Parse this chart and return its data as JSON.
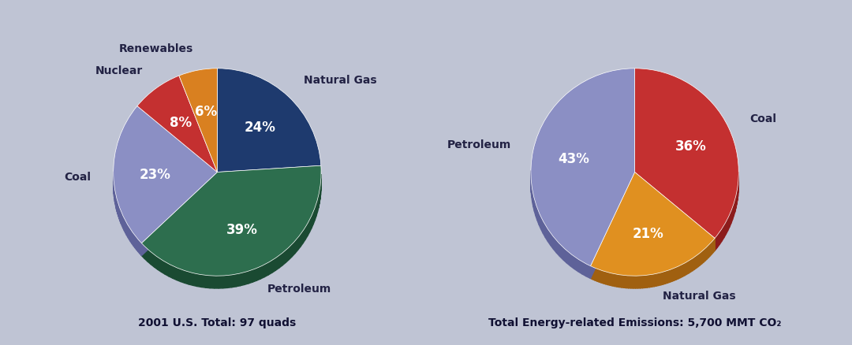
{
  "background_color": "#bfc4d4",
  "chart1": {
    "title": "2001 U.S. Total: 97 quads",
    "slices": [
      {
        "label": "Natural Gas",
        "pct": 24,
        "color": "#1e3a6e",
        "dark_color": "#122548",
        "text_color": "white"
      },
      {
        "label": "Petroleum",
        "pct": 39,
        "color": "#2d6e4e",
        "dark_color": "#1a4a32",
        "text_color": "white"
      },
      {
        "label": "Coal",
        "pct": 23,
        "color": "#8b8fc4",
        "dark_color": "#5e6299",
        "text_color": "white"
      },
      {
        "label": "Nuclear",
        "pct": 8,
        "color": "#c43030",
        "dark_color": "#8c1c1c",
        "text_color": "white"
      },
      {
        "label": "Renewables",
        "pct": 6,
        "color": "#d98020",
        "dark_color": "#a05c10",
        "text_color": "white"
      }
    ],
    "start_angle": 90,
    "depth": 0.12
  },
  "chart2": {
    "title": "Total Energy-related Emissions: 5,700 MMT CO₂",
    "slices": [
      {
        "label": "Coal",
        "pct": 36,
        "color": "#c43030",
        "dark_color": "#8c1c1c",
        "text_color": "white"
      },
      {
        "label": "Natural Gas",
        "pct": 21,
        "color": "#e09020",
        "dark_color": "#a06010",
        "text_color": "white"
      },
      {
        "label": "Petroleum",
        "pct": 43,
        "color": "#8b8fc4",
        "dark_color": "#5e6299",
        "text_color": "white"
      }
    ],
    "start_angle": 90,
    "depth": 0.12
  },
  "label_fontsize": 10,
  "pct_fontsize": 12,
  "title_fontsize": 10,
  "label_color": "#222244"
}
